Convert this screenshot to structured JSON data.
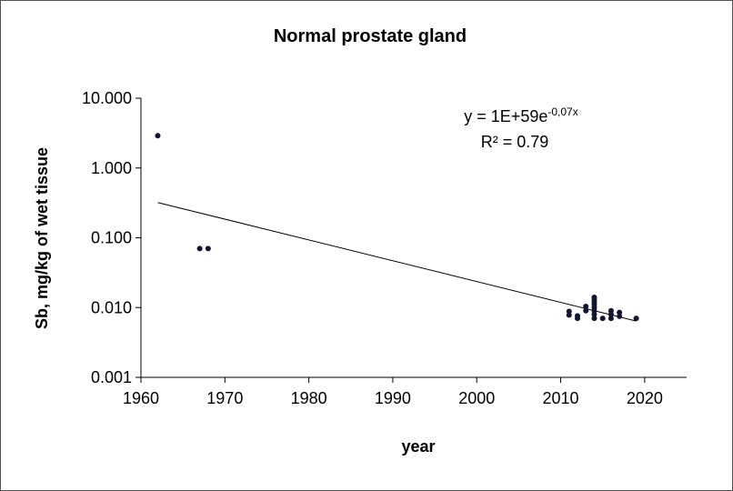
{
  "chart_data": {
    "type": "scatter",
    "title": "Normal prostate gland",
    "x_label": "year",
    "y_label": "Sb, mg/kg of wet tissue",
    "log_y": true,
    "grid": false,
    "xlim": [
      1960,
      2025
    ],
    "xticks": [
      1960,
      1970,
      1980,
      1990,
      2000,
      2010,
      2020
    ],
    "ylim": [
      0.001,
      10
    ],
    "yticks": [
      {
        "value": 10,
        "label": "10.000"
      },
      {
        "value": 1,
        "label": "1.000"
      },
      {
        "value": 0.1,
        "label": "0.100"
      },
      {
        "value": 0.01,
        "label": "0.010"
      },
      {
        "value": 0.001,
        "label": "0.001"
      }
    ],
    "series": [
      {
        "color": "#14142e",
        "x": [
          1962,
          1967,
          1968,
          2011,
          2011,
          2012,
          2012,
          2013,
          2013,
          2014,
          2014,
          2014,
          2014,
          2014,
          2014,
          2014,
          2014,
          2015,
          2016,
          2016,
          2016,
          2017,
          2017,
          2019
        ],
        "values": [
          2.9,
          0.07,
          0.07,
          0.0088,
          0.0078,
          0.007,
          0.0076,
          0.009,
          0.0104,
          0.007,
          0.008,
          0.009,
          0.01,
          0.011,
          0.012,
          0.013,
          0.014,
          0.007,
          0.007,
          0.008,
          0.009,
          0.0075,
          0.0085,
          0.007
        ]
      }
    ],
    "trendline": {
      "x": [
        1962,
        2019
      ],
      "values": [
        0.32,
        0.0064
      ]
    },
    "equation": "y = 1E+59e",
    "equation_exponent": "-0,07x",
    "r_squared": "R² = 0.79"
  }
}
